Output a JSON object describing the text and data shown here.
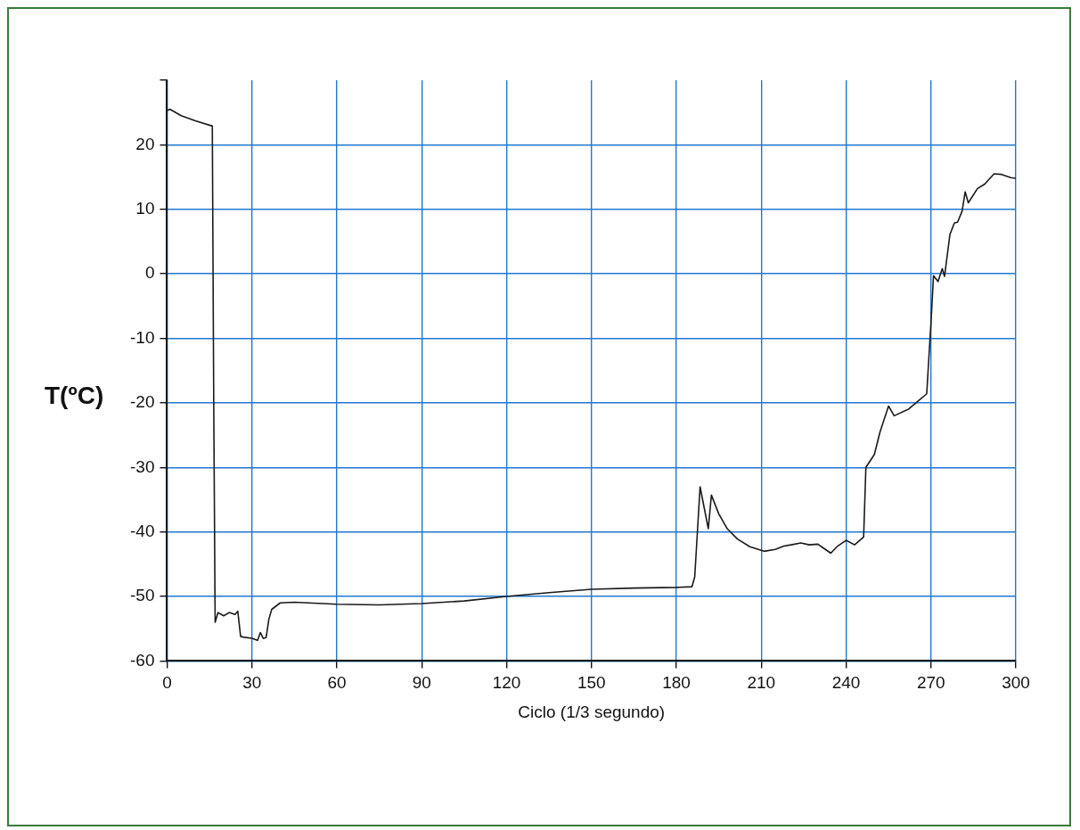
{
  "chart_data": {
    "type": "line",
    "xlabel": "Ciclo (1/3 segundo)",
    "ylabel": "T(ºC)",
    "xlim": [
      0,
      300
    ],
    "xticks": [
      0,
      30,
      60,
      90,
      120,
      150,
      180,
      210,
      240,
      270,
      300
    ],
    "ylim": [
      -60,
      30
    ],
    "yticks": [
      -60,
      -50,
      -40,
      -30,
      -20,
      -10,
      0,
      10,
      20,
      {
        "value": 30,
        "label": null
      }
    ],
    "grid": true,
    "legend": false,
    "marker": "none",
    "line_style": "solid",
    "series": [
      {
        "color": "#1a1a1a",
        "x": [
          0,
          1,
          5,
          10,
          16,
          16.5,
          17,
          18,
          20,
          22,
          24,
          25,
          26,
          27,
          30,
          32,
          33,
          34,
          35,
          36,
          37,
          40,
          45,
          60,
          75,
          90,
          105,
          120,
          135,
          150,
          165,
          180,
          185.5,
          186.5,
          188.4,
          191.3,
          192.4,
          195,
          198,
          201.6,
          206,
          211,
          215,
          218,
          220.6,
          224,
          227,
          230,
          232,
          234.6,
          237,
          240,
          243,
          246.2,
          247,
          250,
          252,
          255,
          257,
          262,
          266,
          268.5,
          270,
          270.9,
          272.5,
          274,
          274.8,
          276.7,
          278.3,
          279.4,
          281,
          282.1,
          283.2,
          286.4,
          289,
          292.3,
          295,
          298.2,
          300
        ],
        "values": [
          25.3,
          25.5,
          24.5,
          23.7,
          22.9,
          -20,
          -54,
          -52.5,
          -53,
          -52.5,
          -52.8,
          -52.3,
          -56.2,
          -56.3,
          -56.5,
          -56.8,
          -55.6,
          -56.5,
          -56.4,
          -53.5,
          -52,
          -51,
          -50.9,
          -51.2,
          -51.3,
          -51.1,
          -50.7,
          -50,
          -49.4,
          -48.9,
          -48.7,
          -48.6,
          -48.5,
          -47,
          -33,
          -39.5,
          -34.3,
          -37.2,
          -39.5,
          -41.1,
          -42.3,
          -43,
          -42.7,
          -42.2,
          -42,
          -41.7,
          -42,
          -41.9,
          -42.5,
          -43.3,
          -42.2,
          -41.3,
          -42,
          -40.8,
          -30,
          -28,
          -24.5,
          -20.5,
          -22,
          -21,
          -19.5,
          -18.6,
          -7.6,
          -0.3,
          -1.2,
          0.8,
          -0.4,
          6.1,
          7.9,
          8,
          9.7,
          12.7,
          11,
          13.2,
          13.9,
          15.5,
          15.4,
          14.9,
          14.8
        ]
      }
    ]
  }
}
